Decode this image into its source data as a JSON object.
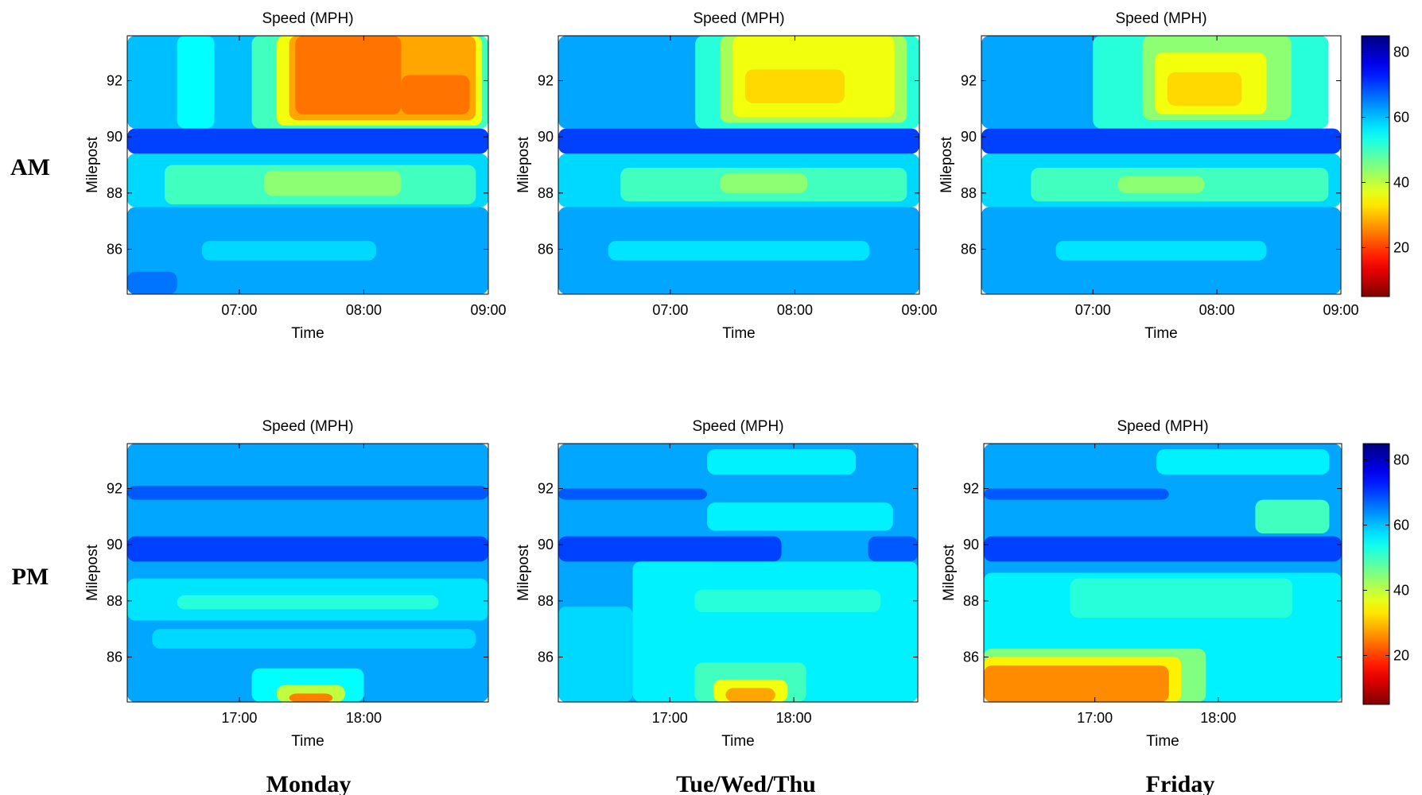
{
  "figure": {
    "row_labels": [
      "AM",
      "PM"
    ],
    "col_labels": [
      "Monday",
      "Tue/Wed/Thu",
      "Friday"
    ]
  },
  "colorbar": {
    "ticks": [
      "20",
      "40",
      "60",
      "80"
    ],
    "tick_values": [
      20,
      40,
      60,
      80
    ],
    "range": [
      5,
      85
    ],
    "colormap": "jet",
    "reversed": true
  },
  "chart_data": [
    {
      "type": "heatmap",
      "title": "Speed (MPH)",
      "xlabel": "Time",
      "ylabel": "Milepost",
      "xticks": [
        "07:00",
        "08:00",
        "09:00"
      ],
      "xtick_values": [
        7.0,
        8.0,
        9.0
      ],
      "xlim": [
        6.1,
        9.0
      ],
      "yticks": [
        "86",
        "88",
        "90",
        "92"
      ],
      "ytick_values": [
        86,
        88,
        90,
        92
      ],
      "ylim": [
        84.4,
        93.6
      ],
      "regions": [
        {
          "mp": [
            90.3,
            93.6
          ],
          "t": [
            6.1,
            7.4
          ],
          "v": 60
        },
        {
          "mp": [
            90.3,
            93.6
          ],
          "t": [
            6.5,
            6.8
          ],
          "v": 55
        },
        {
          "mp": [
            90.3,
            93.6
          ],
          "t": [
            7.1,
            9.0
          ],
          "v": 50
        },
        {
          "mp": [
            90.4,
            93.6
          ],
          "t": [
            7.3,
            8.95
          ],
          "v": 36
        },
        {
          "mp": [
            90.6,
            93.6
          ],
          "t": [
            7.4,
            8.9
          ],
          "v": 28
        },
        {
          "mp": [
            90.8,
            93.6
          ],
          "t": [
            7.45,
            8.3
          ],
          "v": 24
        },
        {
          "mp": [
            90.8,
            92.2
          ],
          "t": [
            8.3,
            8.85
          ],
          "v": 24
        },
        {
          "mp": [
            89.4,
            90.3
          ],
          "t": [
            6.1,
            9.0
          ],
          "v": 70
        },
        {
          "mp": [
            87.5,
            89.4
          ],
          "t": [
            6.1,
            9.0
          ],
          "v": 58
        },
        {
          "mp": [
            87.6,
            89.0
          ],
          "t": [
            6.4,
            8.9
          ],
          "v": 50
        },
        {
          "mp": [
            87.9,
            88.8
          ],
          "t": [
            7.2,
            8.3
          ],
          "v": 44
        },
        {
          "mp": [
            84.4,
            87.5
          ],
          "t": [
            6.1,
            9.0
          ],
          "v": 62
        },
        {
          "mp": [
            85.6,
            86.3
          ],
          "t": [
            6.7,
            8.1
          ],
          "v": 58
        },
        {
          "mp": [
            84.4,
            85.2
          ],
          "t": [
            6.1,
            6.5
          ],
          "v": 66
        }
      ]
    },
    {
      "type": "heatmap",
      "title": "Speed (MPH)",
      "xlabel": "Time",
      "ylabel": "Milepost",
      "xticks": [
        "07:00",
        "08:00",
        "09:00"
      ],
      "xtick_values": [
        7.0,
        8.0,
        9.0
      ],
      "xlim": [
        6.1,
        9.0
      ],
      "yticks": [
        "86",
        "88",
        "90",
        "92"
      ],
      "ytick_values": [
        86,
        88,
        90,
        92
      ],
      "ylim": [
        84.4,
        93.6
      ],
      "regions": [
        {
          "mp": [
            90.3,
            93.6
          ],
          "t": [
            6.1,
            7.3
          ],
          "v": 62
        },
        {
          "mp": [
            90.3,
            93.6
          ],
          "t": [
            7.2,
            9.0
          ],
          "v": 52
        },
        {
          "mp": [
            90.5,
            93.6
          ],
          "t": [
            7.4,
            8.9
          ],
          "v": 42
        },
        {
          "mp": [
            90.7,
            93.6
          ],
          "t": [
            7.5,
            8.8
          ],
          "v": 36
        },
        {
          "mp": [
            91.2,
            92.4
          ],
          "t": [
            7.6,
            8.4
          ],
          "v": 32
        },
        {
          "mp": [
            89.4,
            90.3
          ],
          "t": [
            6.1,
            9.0
          ],
          "v": 70
        },
        {
          "mp": [
            87.5,
            89.4
          ],
          "t": [
            6.1,
            9.0
          ],
          "v": 58
        },
        {
          "mp": [
            87.7,
            88.9
          ],
          "t": [
            6.6,
            8.9
          ],
          "v": 50
        },
        {
          "mp": [
            88.0,
            88.7
          ],
          "t": [
            7.4,
            8.1
          ],
          "v": 44
        },
        {
          "mp": [
            84.4,
            87.5
          ],
          "t": [
            6.1,
            9.0
          ],
          "v": 62
        },
        {
          "mp": [
            85.6,
            86.3
          ],
          "t": [
            6.5,
            8.6
          ],
          "v": 57
        }
      ]
    },
    {
      "type": "heatmap",
      "title": "Speed (MPH)",
      "xlabel": "Time",
      "ylabel": "Milepost",
      "xticks": [
        "07:00",
        "08:00",
        "09:00"
      ],
      "xtick_values": [
        7.0,
        8.0,
        9.0
      ],
      "xlim": [
        6.1,
        9.0
      ],
      "yticks": [
        "86",
        "88",
        "90",
        "92"
      ],
      "ytick_values": [
        86,
        88,
        90,
        92
      ],
      "ylim": [
        84.4,
        93.6
      ],
      "regions": [
        {
          "mp": [
            90.3,
            93.6
          ],
          "t": [
            6.1,
            7.3
          ],
          "v": 62
        },
        {
          "mp": [
            90.3,
            93.6
          ],
          "t": [
            7.0,
            8.9
          ],
          "v": 52
        },
        {
          "mp": [
            90.6,
            93.6
          ],
          "t": [
            7.4,
            8.6
          ],
          "v": 44
        },
        {
          "mp": [
            90.8,
            93.0
          ],
          "t": [
            7.5,
            8.4
          ],
          "v": 36
        },
        {
          "mp": [
            91.1,
            92.3
          ],
          "t": [
            7.6,
            8.2
          ],
          "v": 32
        },
        {
          "mp": [
            89.4,
            90.3
          ],
          "t": [
            6.1,
            9.0
          ],
          "v": 70
        },
        {
          "mp": [
            87.5,
            89.4
          ],
          "t": [
            6.1,
            9.0
          ],
          "v": 58
        },
        {
          "mp": [
            87.7,
            88.9
          ],
          "t": [
            6.5,
            8.9
          ],
          "v": 50
        },
        {
          "mp": [
            88.0,
            88.6
          ],
          "t": [
            7.2,
            7.9
          ],
          "v": 44
        },
        {
          "mp": [
            84.4,
            87.5
          ],
          "t": [
            6.1,
            9.0
          ],
          "v": 62
        },
        {
          "mp": [
            85.6,
            86.3
          ],
          "t": [
            6.7,
            8.4
          ],
          "v": 57
        }
      ]
    },
    {
      "type": "heatmap",
      "title": "Speed (MPH)",
      "xlabel": "Time",
      "ylabel": "Milepost",
      "xticks": [
        "17:00",
        "18:00"
      ],
      "xtick_values": [
        17.0,
        18.0
      ],
      "xlim": [
        16.1,
        19.0
      ],
      "yticks": [
        "86",
        "88",
        "90",
        "92"
      ],
      "ytick_values": [
        86,
        88,
        90,
        92
      ],
      "ylim": [
        84.4,
        93.6
      ],
      "regions": [
        {
          "mp": [
            84.4,
            93.6
          ],
          "t": [
            16.1,
            19.0
          ],
          "v": 62
        },
        {
          "mp": [
            91.6,
            92.1
          ],
          "t": [
            16.1,
            19.0
          ],
          "v": 68
        },
        {
          "mp": [
            89.4,
            90.3
          ],
          "t": [
            16.1,
            19.0
          ],
          "v": 70
        },
        {
          "mp": [
            87.3,
            88.8
          ],
          "t": [
            16.1,
            19.0
          ],
          "v": 57
        },
        {
          "mp": [
            87.7,
            88.2
          ],
          "t": [
            16.5,
            18.6
          ],
          "v": 52
        },
        {
          "mp": [
            86.3,
            87.0
          ],
          "t": [
            16.3,
            18.9
          ],
          "v": 58
        },
        {
          "mp": [
            84.4,
            85.6
          ],
          "t": [
            17.1,
            18.0
          ],
          "v": 55
        },
        {
          "mp": [
            84.4,
            85.0
          ],
          "t": [
            17.3,
            17.85
          ],
          "v": 40
        },
        {
          "mp": [
            84.4,
            84.7
          ],
          "t": [
            17.4,
            17.75
          ],
          "v": 25
        }
      ]
    },
    {
      "type": "heatmap",
      "title": "Speed (MPH)",
      "xlabel": "Time",
      "ylabel": "Milepost",
      "xticks": [
        "17:00",
        "18:00"
      ],
      "xtick_values": [
        17.0,
        18.0
      ],
      "xlim": [
        16.1,
        19.0
      ],
      "yticks": [
        "86",
        "88",
        "90",
        "92"
      ],
      "ytick_values": [
        86,
        88,
        90,
        92
      ],
      "ylim": [
        84.4,
        93.6
      ],
      "regions": [
        {
          "mp": [
            84.4,
            93.6
          ],
          "t": [
            16.1,
            19.0
          ],
          "v": 62
        },
        {
          "mp": [
            91.6,
            92.0
          ],
          "t": [
            16.1,
            17.3
          ],
          "v": 68
        },
        {
          "mp": [
            92.5,
            93.4
          ],
          "t": [
            17.3,
            18.5
          ],
          "v": 56
        },
        {
          "mp": [
            90.5,
            91.5
          ],
          "t": [
            17.3,
            18.8
          ],
          "v": 56
        },
        {
          "mp": [
            89.4,
            90.3
          ],
          "t": [
            16.1,
            17.9
          ],
          "v": 70
        },
        {
          "mp": [
            89.4,
            90.3
          ],
          "t": [
            18.6,
            19.0
          ],
          "v": 68
        },
        {
          "mp": [
            84.4,
            89.4
          ],
          "t": [
            16.7,
            19.0
          ],
          "v": 56
        },
        {
          "mp": [
            84.4,
            87.8
          ],
          "t": [
            16.1,
            16.7
          ],
          "v": 58
        },
        {
          "mp": [
            87.6,
            88.4
          ],
          "t": [
            17.2,
            18.7
          ],
          "v": 52
        },
        {
          "mp": [
            84.4,
            85.8
          ],
          "t": [
            17.2,
            18.1
          ],
          "v": 50
        },
        {
          "mp": [
            84.4,
            85.2
          ],
          "t": [
            17.35,
            17.95
          ],
          "v": 36
        },
        {
          "mp": [
            84.4,
            84.9
          ],
          "t": [
            17.45,
            17.85
          ],
          "v": 28
        }
      ]
    },
    {
      "type": "heatmap",
      "title": "Speed (MPH)",
      "xlabel": "Time",
      "ylabel": "Milepost",
      "xticks": [
        "17:00",
        "18:00"
      ],
      "xtick_values": [
        17.0,
        18.0
      ],
      "xlim": [
        16.1,
        19.0
      ],
      "yticks": [
        "86",
        "88",
        "90",
        "92"
      ],
      "ytick_values": [
        86,
        88,
        90,
        92
      ],
      "ylim": [
        84.4,
        93.6
      ],
      "regions": [
        {
          "mp": [
            84.4,
            93.6
          ],
          "t": [
            16.1,
            19.0
          ],
          "v": 62
        },
        {
          "mp": [
            91.6,
            92.0
          ],
          "t": [
            16.1,
            17.6
          ],
          "v": 68
        },
        {
          "mp": [
            92.5,
            93.4
          ],
          "t": [
            17.5,
            18.9
          ],
          "v": 56
        },
        {
          "mp": [
            90.4,
            91.6
          ],
          "t": [
            18.3,
            18.9
          ],
          "v": 50
        },
        {
          "mp": [
            89.4,
            90.3
          ],
          "t": [
            16.1,
            19.0
          ],
          "v": 70
        },
        {
          "mp": [
            84.4,
            89.0
          ],
          "t": [
            16.1,
            19.0
          ],
          "v": 56
        },
        {
          "mp": [
            87.4,
            88.8
          ],
          "t": [
            16.8,
            18.6
          ],
          "v": 52
        },
        {
          "mp": [
            84.4,
            86.3
          ],
          "t": [
            16.1,
            17.9
          ],
          "v": 45
        },
        {
          "mp": [
            84.4,
            86.0
          ],
          "t": [
            16.1,
            17.7
          ],
          "v": 34
        },
        {
          "mp": [
            84.4,
            85.7
          ],
          "t": [
            16.1,
            17.6
          ],
          "v": 26
        }
      ]
    }
  ]
}
